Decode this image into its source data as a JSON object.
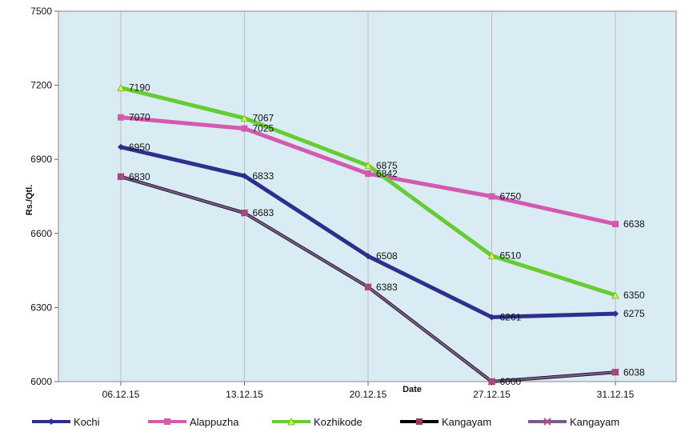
{
  "chart_data": {
    "type": "line",
    "title": "",
    "xlabel": "Date",
    "ylabel": "Rs./Qtl.",
    "categories": [
      "06.12.15",
      "13.12.15",
      "20.12.15",
      "27.12.15",
      "31.12.15"
    ],
    "ylim": [
      6000,
      7500
    ],
    "yticks": [
      "6000",
      "6300",
      "6600",
      "6900",
      "7200",
      "7500"
    ],
    "grid": true,
    "legend": "bottom",
    "plot_background": "#daecf3",
    "series": [
      {
        "name": "Kochi",
        "values": [
          6950,
          6833,
          6508,
          6261,
          6275
        ],
        "labels": [
          "6950",
          "6833",
          "6508",
          "6261",
          "6275"
        ],
        "color": "#2d2f8c",
        "marker": "diamond"
      },
      {
        "name": "Alappuzha",
        "values": [
          7070,
          7025,
          6842,
          6750,
          6638
        ],
        "labels": [
          "7070",
          "7025",
          "6842",
          "6750",
          "6638"
        ],
        "color": "#d45ab0",
        "marker": "square"
      },
      {
        "name": "Kozhikode",
        "values": [
          7190,
          7067,
          6875,
          6510,
          6350
        ],
        "labels": [
          "7190",
          "7067",
          "6875",
          "6510",
          "6350"
        ],
        "color": "#66cc33",
        "marker": "triangle"
      },
      {
        "name": "Kangayam",
        "values": [
          6830,
          6683,
          6383,
          6000,
          6038
        ],
        "labels": [
          "",
          "",
          "",
          "",
          ""
        ],
        "color": "#000000",
        "marker": "square"
      },
      {
        "name": "Kangayam",
        "values": [
          6830,
          6683,
          6383,
          6000,
          6038
        ],
        "labels": [
          "6830",
          "6683",
          "6383",
          "6000",
          "6038"
        ],
        "color": "#7b5a8e",
        "marker": "cross"
      }
    ]
  }
}
